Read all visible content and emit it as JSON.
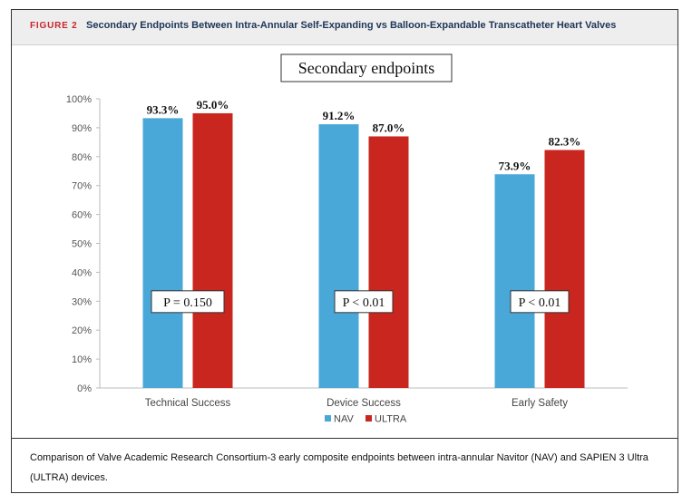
{
  "figure": {
    "label": "FIGURE 2",
    "title": "Secondary Endpoints Between Intra-Annular Self-Expanding vs Balloon-Expandable Transcatheter Heart Valves",
    "caption": "Comparison of Valve Academic Research Consortium-3 early composite endpoints between intra-annular Navitor (NAV) and SAPIEN 3 Ultra (ULTRA) devices."
  },
  "chart_data": {
    "type": "bar",
    "title": "Secondary endpoints",
    "categories": [
      "Technical Success",
      "Device Success",
      "Early Safety"
    ],
    "series": [
      {
        "name": "NAV",
        "values": [
          93.3,
          91.2,
          73.9
        ],
        "labels": [
          "93.3%",
          "91.2%",
          "73.9%"
        ],
        "color": "#4aa8d8"
      },
      {
        "name": "ULTRA",
        "values": [
          95.0,
          87.0,
          82.3
        ],
        "labels": [
          "95.0%",
          "87.0%",
          "82.3%"
        ],
        "color": "#c8261e"
      }
    ],
    "p_values": [
      "P = 0.150",
      "P < 0.01",
      "P < 0.01"
    ],
    "ylim": [
      0,
      100
    ],
    "yticks": [
      "0%",
      "10%",
      "20%",
      "30%",
      "40%",
      "50%",
      "60%",
      "70%",
      "80%",
      "90%",
      "100%"
    ],
    "xlabel": "",
    "ylabel": "",
    "grid": false,
    "legend": "bottom"
  }
}
